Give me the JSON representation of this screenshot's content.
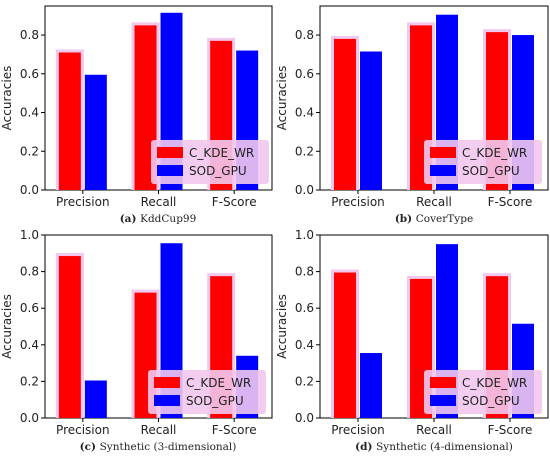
{
  "colors": {
    "series_a": "#ff0000",
    "series_b": "#0000ff",
    "halo": "#f2c8ee",
    "legend_bg": "#f2c8ee"
  },
  "chart_data": [
    {
      "type": "bar",
      "caption_label": "(a)",
      "caption_text": "KddCup99",
      "categories": [
        "Precision",
        "Recall",
        "F-Score"
      ],
      "series": [
        {
          "name": "C_KDE_WR",
          "values": [
            0.71,
            0.85,
            0.77
          ]
        },
        {
          "name": "SOD_GPU",
          "values": [
            0.595,
            0.915,
            0.72
          ]
        }
      ],
      "ylabel": "Accuracies",
      "yticks": [
        "0.0",
        "0.2",
        "0.4",
        "0.6",
        "0.8"
      ],
      "ylim": [
        0,
        0.95
      ],
      "legend": "lower-right",
      "grid": false
    },
    {
      "type": "bar",
      "caption_label": "(b)",
      "caption_text": "CoverType",
      "categories": [
        "Precision",
        "Recall",
        "F-Score"
      ],
      "series": [
        {
          "name": "C_KDE_WR",
          "values": [
            0.78,
            0.85,
            0.815
          ]
        },
        {
          "name": "SOD_GPU",
          "values": [
            0.715,
            0.905,
            0.8
          ]
        }
      ],
      "ylabel": "Accuracies",
      "yticks": [
        "0.0",
        "0.2",
        "0.4",
        "0.6",
        "0.8"
      ],
      "ylim": [
        0,
        0.95
      ],
      "legend": "lower-right",
      "grid": false
    },
    {
      "type": "bar",
      "caption_label": "(c)",
      "caption_text": "Synthetic (3-dimensional)",
      "categories": [
        "Precision",
        "Recall",
        "F-Score"
      ],
      "series": [
        {
          "name": "C_KDE_WR",
          "values": [
            0.885,
            0.685,
            0.775
          ]
        },
        {
          "name": "SOD_GPU",
          "values": [
            0.205,
            0.955,
            0.34
          ]
        }
      ],
      "ylabel": "Accuracies",
      "yticks": [
        "0.0",
        "0.2",
        "0.4",
        "0.6",
        "0.8",
        "1.0"
      ],
      "ylim": [
        0,
        1.0
      ],
      "legend": "lower-right",
      "grid": false
    },
    {
      "type": "bar",
      "caption_label": "(d)",
      "caption_text": "Synthetic (4-dimensional)",
      "categories": [
        "Precision",
        "Recall",
        "F-Score"
      ],
      "series": [
        {
          "name": "C_KDE_WR",
          "values": [
            0.795,
            0.76,
            0.775
          ]
        },
        {
          "name": "SOD_GPU",
          "values": [
            0.355,
            0.95,
            0.515
          ]
        }
      ],
      "ylabel": "Accuracies",
      "yticks": [
        "0.0",
        "0.2",
        "0.4",
        "0.6",
        "0.8",
        "1.0"
      ],
      "ylim": [
        0,
        1.0
      ],
      "legend": "lower-right",
      "grid": false
    }
  ]
}
